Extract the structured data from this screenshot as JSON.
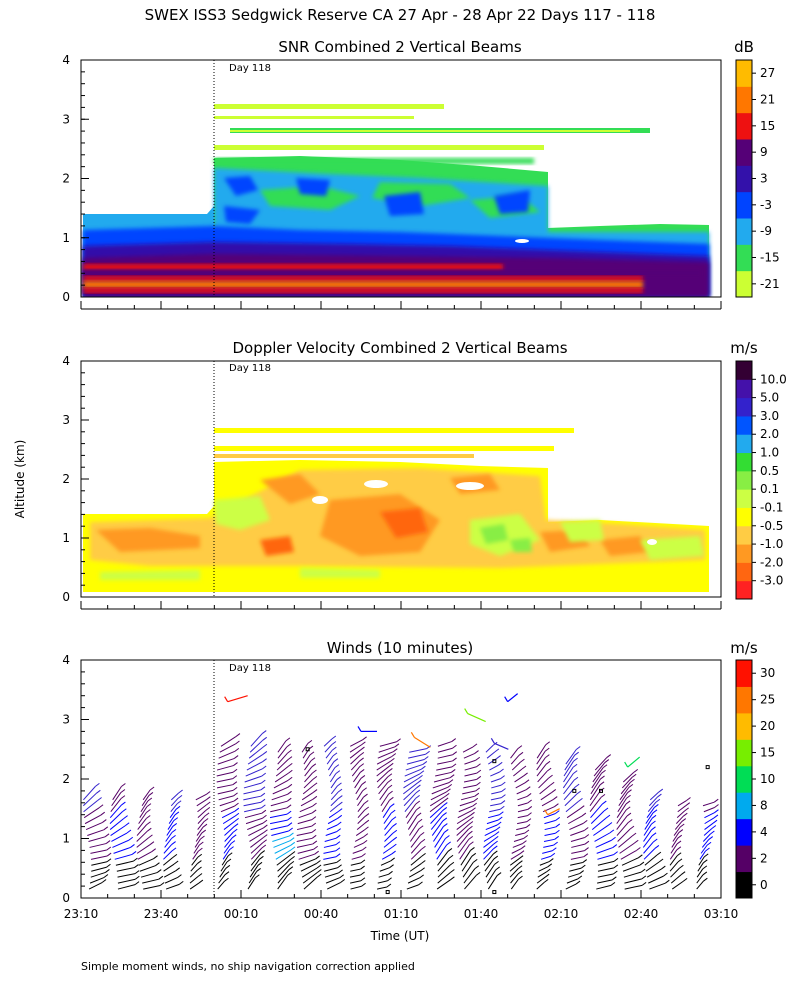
{
  "page": {
    "main_title": "SWEX ISS3 Sedgwick Reserve CA  27 Apr - 28 Apr 22 Days 117 - 118",
    "y_axis_label": "Altitude (km)",
    "x_axis_label": "Time (UT)",
    "footnote": "Simple moment winds, no ship navigation correction applied",
    "day_marker": "Day 118"
  },
  "chart_data": [
    {
      "id": "snr",
      "type": "heatmap",
      "title": "SNR Combined 2 Vertical Beams",
      "unit": "dB",
      "ylabel": "Altitude (km)",
      "ylim": [
        0,
        4
      ],
      "y_ticks": [
        "0",
        "1",
        "2",
        "3",
        "4"
      ],
      "colorbar": {
        "colors": [
          "#ccff33",
          "#33dd55",
          "#22aaee",
          "#0044ff",
          "#3311aa",
          "#550077",
          "#ee1111",
          "#ff7700",
          "#ffbb00"
        ],
        "labels": [
          "-21",
          "-15",
          "-9",
          "-3",
          "3",
          "9",
          "15",
          "21",
          "27"
        ]
      },
      "coverage": "Data from surface to ~1.4 km before Day 118; up to ~2.9 km after, with gaps aloft"
    },
    {
      "id": "doppler",
      "type": "heatmap",
      "title": "Doppler Velocity Combined 2 Vertical Beams",
      "unit": "m/s",
      "ylabel": "Altitude (km)",
      "ylim": [
        0,
        4
      ],
      "y_ticks": [
        "0",
        "1",
        "2",
        "3",
        "4"
      ],
      "colorbar": {
        "colors": [
          "#ff2222",
          "#ff6611",
          "#ff9922",
          "#ffcc44",
          "#ffff00",
          "#ccff44",
          "#88ee44",
          "#33dd33",
          "#22aaee",
          "#0055ff",
          "#3322cc",
          "#4411aa",
          "#330033"
        ],
        "labels": [
          "-3.0",
          "-2.0",
          "-1.0",
          "-0.5",
          "-0.1",
          "0.1",
          "0.5",
          "1.0",
          "2.0",
          "3.0",
          "5.0",
          "10.0"
        ]
      }
    },
    {
      "id": "winds",
      "type": "barbs",
      "title": "Winds (10 minutes)",
      "unit": "m/s",
      "ylabel": "Altitude (km)",
      "ylim": [
        0,
        4
      ],
      "y_ticks": [
        "0",
        "1",
        "2",
        "3",
        "4"
      ],
      "x_ticks": [
        "23:10",
        "23:40",
        "00:10",
        "00:40",
        "01:10",
        "01:40",
        "02:10",
        "02:40",
        "03:10"
      ],
      "colorbar": {
        "colors": [
          "#000000",
          "#550066",
          "#0000ff",
          "#00aaee",
          "#00dd55",
          "#77ee00",
          "#ffbb00",
          "#ff7700",
          "#ff1100"
        ],
        "labels": [
          "0",
          "2",
          "4",
          "8",
          "10",
          "15",
          "20",
          "25",
          "30"
        ]
      },
      "profile_times": [
        "23:15",
        "23:25",
        "23:35",
        "23:45",
        "23:55",
        "00:05",
        "00:15",
        "00:25",
        "00:35",
        "00:45",
        "00:55",
        "01:05",
        "01:15",
        "01:25",
        "01:35",
        "01:45",
        "01:55",
        "02:05",
        "02:15",
        "02:25",
        "02:35",
        "02:45",
        "02:55",
        "03:05"
      ],
      "profile_tops_km": [
        1.7,
        1.7,
        1.7,
        1.7,
        1.7,
        2.6,
        2.6,
        2.5,
        2.5,
        2.6,
        2.6,
        2.6,
        2.5,
        2.6,
        2.5,
        2.5,
        2.4,
        2.4,
        2.3,
        2.2,
        2.0,
        1.7,
        1.6,
        1.6
      ]
    }
  ]
}
